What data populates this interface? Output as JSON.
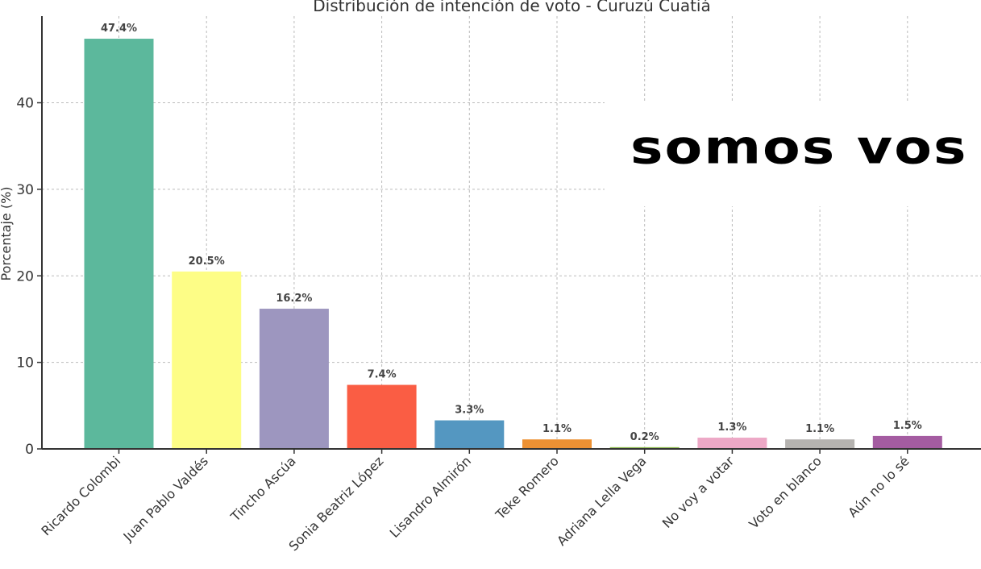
{
  "chart_data": {
    "type": "bar",
    "title": "Distribución de intención de voto - Curuzú Cuatiá",
    "xlabel": "",
    "ylabel": "Porcentaje (%)",
    "ylim": [
      0,
      50
    ],
    "yticks": [
      0,
      10,
      20,
      30,
      40
    ],
    "grid": true,
    "categories": [
      "Ricardo Colombi",
      "Juan Pablo Valdés",
      "Tincho Ascúa",
      "Sonia Beatriz López",
      "Lisandro Almirón",
      "Teke Romero",
      "Adriana Lella Vega",
      "No voy a votar",
      "Voto en blanco",
      "Aún no lo sé"
    ],
    "values": [
      47.4,
      20.5,
      16.2,
      7.4,
      3.3,
      1.1,
      0.2,
      1.3,
      1.1,
      1.5
    ],
    "value_labels": [
      "47.4%",
      "20.5%",
      "16.2%",
      "7.4%",
      "3.3%",
      "1.1%",
      "0.2%",
      "1.3%",
      "1.1%",
      "1.5%"
    ],
    "colors": [
      "#5cb89c",
      "#fdfd86",
      "#9d96bf",
      "#fa5d44",
      "#5497c1",
      "#ed9133",
      "#8ab84a",
      "#eda8c6",
      "#b5b3b0",
      "#a45ca1"
    ]
  },
  "watermark": {
    "text": "somos vos"
  }
}
